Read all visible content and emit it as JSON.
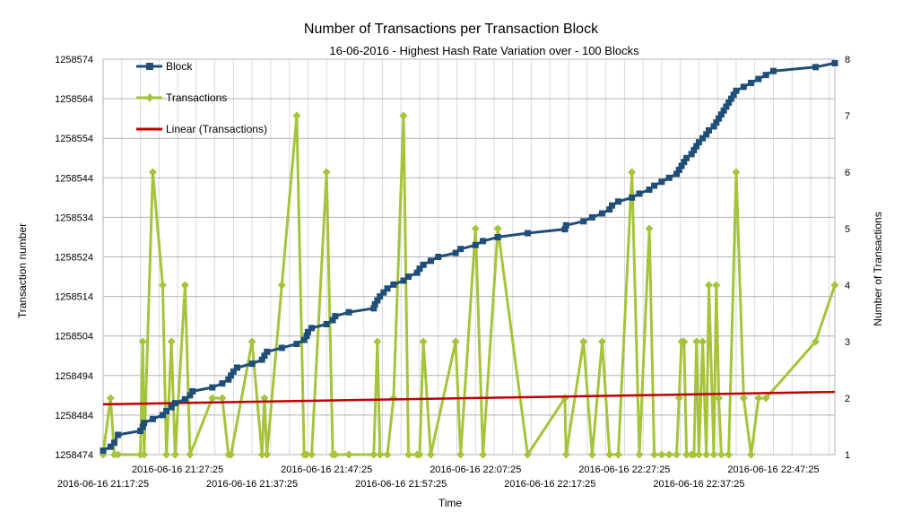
{
  "chart_data": {
    "type": "line",
    "title": "Number of Transactions per Transaction Block",
    "subtitle": "16-06-2016 - Highest Hash Rate Variation over - 100 Blocks",
    "xlabel": "Time",
    "ylabel": "Transaction number",
    "y2label": "Number of Transactions",
    "x_ticks_upper": [
      "2016-06-16 21:27:25",
      "2016-06-16 21:47:25",
      "2016-06-16 22:07:25",
      "2016-06-16 22:27:25",
      "2016-06-16 22:47:25"
    ],
    "x_ticks_lower": [
      "2016-06-16 21:17:25",
      "2016-06-16 21:37:25",
      "2016-06-16 21:57:25",
      "2016-06-16 22:17:25",
      "2016-06-16 22:37:25"
    ],
    "xlim": [
      "2016-06-16 21:17:25",
      "2016-06-16 22:55:40"
    ],
    "ylim": [
      1258474,
      1258574
    ],
    "y_ticks": [
      1258474,
      1258484,
      1258494,
      1258504,
      1258514,
      1258524,
      1258534,
      1258544,
      1258554,
      1258564,
      1258574
    ],
    "y2lim": [
      1,
      8
    ],
    "y2_ticks": [
      1,
      2,
      3,
      4,
      5,
      6,
      7,
      8
    ],
    "grid": true,
    "legend_position": "top-left",
    "series": [
      {
        "name": "Block",
        "axis": "left",
        "color": "#1f4e79",
        "marker": "square",
        "points": [
          [
            "2016-06-16 21:17:25",
            1258475
          ],
          [
            "2016-06-16 21:18:25",
            1258476
          ],
          [
            "2016-06-16 21:18:55",
            1258477
          ],
          [
            "2016-06-16 21:19:25",
            1258479
          ],
          [
            "2016-06-16 21:22:25",
            1258480
          ],
          [
            "2016-06-16 21:22:45",
            1258481
          ],
          [
            "2016-06-16 21:22:55",
            1258482
          ],
          [
            "2016-06-16 21:24:05",
            1258483
          ],
          [
            "2016-06-16 21:25:25",
            1258484
          ],
          [
            "2016-06-16 21:25:55",
            1258485
          ],
          [
            "2016-06-16 21:26:35",
            1258486
          ],
          [
            "2016-06-16 21:27:05",
            1258487
          ],
          [
            "2016-06-16 21:28:25",
            1258488
          ],
          [
            "2016-06-16 21:29:05",
            1258489
          ],
          [
            "2016-06-16 21:29:25",
            1258490
          ],
          [
            "2016-06-16 21:32:05",
            1258491
          ],
          [
            "2016-06-16 21:33:25",
            1258492
          ],
          [
            "2016-06-16 21:34:15",
            1258493
          ],
          [
            "2016-06-16 21:34:35",
            1258494
          ],
          [
            "2016-06-16 21:34:55",
            1258495
          ],
          [
            "2016-06-16 21:35:25",
            1258496
          ],
          [
            "2016-06-16 21:37:25",
            1258497
          ],
          [
            "2016-06-16 21:38:45",
            1258498
          ],
          [
            "2016-06-16 21:39:05",
            1258499
          ],
          [
            "2016-06-16 21:39:25",
            1258500
          ],
          [
            "2016-06-16 21:41:25",
            1258501
          ],
          [
            "2016-06-16 21:43:25",
            1258502
          ],
          [
            "2016-06-16 21:44:25",
            1258503
          ],
          [
            "2016-06-16 21:44:45",
            1258504
          ],
          [
            "2016-06-16 21:44:55",
            1258505
          ],
          [
            "2016-06-16 21:45:25",
            1258506
          ],
          [
            "2016-06-16 21:47:25",
            1258507
          ],
          [
            "2016-06-16 21:48:15",
            1258508
          ],
          [
            "2016-06-16 21:48:35",
            1258509
          ],
          [
            "2016-06-16 21:50:25",
            1258510
          ],
          [
            "2016-06-16 21:53:45",
            1258511
          ],
          [
            "2016-06-16 21:53:55",
            1258512
          ],
          [
            "2016-06-16 21:54:15",
            1258513
          ],
          [
            "2016-06-16 21:54:35",
            1258514
          ],
          [
            "2016-06-16 21:55:05",
            1258515
          ],
          [
            "2016-06-16 21:55:35",
            1258516
          ],
          [
            "2016-06-16 21:56:25",
            1258517
          ],
          [
            "2016-06-16 21:57:45",
            1258518
          ],
          [
            "2016-06-16 21:58:25",
            1258519
          ],
          [
            "2016-06-16 21:59:35",
            1258520
          ],
          [
            "2016-06-16 21:59:55",
            1258521
          ],
          [
            "2016-06-16 22:00:25",
            1258522
          ],
          [
            "2016-06-16 22:01:25",
            1258523
          ],
          [
            "2016-06-16 22:02:25",
            1258524
          ],
          [
            "2016-06-16 22:04:45",
            1258525
          ],
          [
            "2016-06-16 22:05:25",
            1258526
          ],
          [
            "2016-06-16 22:07:25",
            1258527
          ],
          [
            "2016-06-16 22:08:25",
            1258528
          ],
          [
            "2016-06-16 22:10:25",
            1258529
          ],
          [
            "2016-06-16 22:14:25",
            1258530
          ],
          [
            "2016-06-16 22:19:25",
            1258531
          ],
          [
            "2016-06-16 22:19:35",
            1258532
          ],
          [
            "2016-06-16 22:21:55",
            1258533
          ],
          [
            "2016-06-16 22:23:05",
            1258534
          ],
          [
            "2016-06-16 22:24:25",
            1258535
          ],
          [
            "2016-06-16 22:25:25",
            1258536
          ],
          [
            "2016-06-16 22:25:45",
            1258537
          ],
          [
            "2016-06-16 22:26:35",
            1258538
          ],
          [
            "2016-06-16 22:28:25",
            1258539
          ],
          [
            "2016-06-16 22:29:25",
            1258540
          ],
          [
            "2016-06-16 22:30:45",
            1258541
          ],
          [
            "2016-06-16 22:31:25",
            1258542
          ],
          [
            "2016-06-16 22:32:25",
            1258543
          ],
          [
            "2016-06-16 22:33:25",
            1258544
          ],
          [
            "2016-06-16 22:34:25",
            1258545
          ],
          [
            "2016-06-16 22:34:45",
            1258546
          ],
          [
            "2016-06-16 22:35:05",
            1258547
          ],
          [
            "2016-06-16 22:35:25",
            1258548
          ],
          [
            "2016-06-16 22:35:45",
            1258549
          ],
          [
            "2016-06-16 22:36:25",
            1258550
          ],
          [
            "2016-06-16 22:36:45",
            1258551
          ],
          [
            "2016-06-16 22:37:05",
            1258552
          ],
          [
            "2016-06-16 22:37:25",
            1258553
          ],
          [
            "2016-06-16 22:37:55",
            1258554
          ],
          [
            "2016-06-16 22:38:25",
            1258555
          ],
          [
            "2016-06-16 22:38:45",
            1258556
          ],
          [
            "2016-06-16 22:39:25",
            1258557
          ],
          [
            "2016-06-16 22:39:45",
            1258558
          ],
          [
            "2016-06-16 22:40:05",
            1258559
          ],
          [
            "2016-06-16 22:40:25",
            1258560
          ],
          [
            "2016-06-16 22:40:45",
            1258561
          ],
          [
            "2016-06-16 22:41:05",
            1258562
          ],
          [
            "2016-06-16 22:41:25",
            1258563
          ],
          [
            "2016-06-16 22:41:45",
            1258564
          ],
          [
            "2016-06-16 22:42:05",
            1258565
          ],
          [
            "2016-06-16 22:42:25",
            1258566
          ],
          [
            "2016-06-16 22:43:25",
            1258567
          ],
          [
            "2016-06-16 22:44:25",
            1258568
          ],
          [
            "2016-06-16 22:45:25",
            1258569
          ],
          [
            "2016-06-16 22:46:25",
            1258570
          ],
          [
            "2016-06-16 22:47:25",
            1258571
          ],
          [
            "2016-06-16 22:53:05",
            1258572
          ],
          [
            "2016-06-16 22:55:40",
            1258573
          ]
        ]
      },
      {
        "name": "Transactions",
        "axis": "right",
        "color": "#a5c43a",
        "marker": "diamond",
        "points": [
          [
            "2016-06-16 21:17:25",
            1
          ],
          [
            "2016-06-16 21:18:25",
            2
          ],
          [
            "2016-06-16 21:18:55",
            1
          ],
          [
            "2016-06-16 21:19:25",
            1
          ],
          [
            "2016-06-16 21:22:25",
            1
          ],
          [
            "2016-06-16 21:22:45",
            3
          ],
          [
            "2016-06-16 21:22:55",
            1
          ],
          [
            "2016-06-16 21:24:05",
            6
          ],
          [
            "2016-06-16 21:25:25",
            4
          ],
          [
            "2016-06-16 21:25:55",
            1
          ],
          [
            "2016-06-16 21:26:35",
            3
          ],
          [
            "2016-06-16 21:27:05",
            1
          ],
          [
            "2016-06-16 21:28:25",
            4
          ],
          [
            "2016-06-16 21:29:05",
            1
          ],
          [
            "2016-06-16 21:32:05",
            2
          ],
          [
            "2016-06-16 21:33:25",
            2
          ],
          [
            "2016-06-16 21:34:15",
            1
          ],
          [
            "2016-06-16 21:34:35",
            1
          ],
          [
            "2016-06-16 21:37:25",
            3
          ],
          [
            "2016-06-16 21:38:45",
            1
          ],
          [
            "2016-06-16 21:39:05",
            2
          ],
          [
            "2016-06-16 21:39:25",
            1
          ],
          [
            "2016-06-16 21:41:25",
            4
          ],
          [
            "2016-06-16 21:43:25",
            7
          ],
          [
            "2016-06-16 21:44:25",
            1
          ],
          [
            "2016-06-16 21:44:45",
            1
          ],
          [
            "2016-06-16 21:45:25",
            1
          ],
          [
            "2016-06-16 21:47:25",
            6
          ],
          [
            "2016-06-16 21:48:15",
            1
          ],
          [
            "2016-06-16 21:48:35",
            1
          ],
          [
            "2016-06-16 21:50:25",
            1
          ],
          [
            "2016-06-16 21:53:45",
            1
          ],
          [
            "2016-06-16 21:54:15",
            3
          ],
          [
            "2016-06-16 21:54:35",
            1
          ],
          [
            "2016-06-16 21:55:35",
            1
          ],
          [
            "2016-06-16 21:56:25",
            2
          ],
          [
            "2016-06-16 21:57:45",
            7
          ],
          [
            "2016-06-16 21:58:25",
            1
          ],
          [
            "2016-06-16 21:59:35",
            1
          ],
          [
            "2016-06-16 21:59:55",
            1
          ],
          [
            "2016-06-16 22:00:25",
            3
          ],
          [
            "2016-06-16 22:01:25",
            1
          ],
          [
            "2016-06-16 22:04:45",
            3
          ],
          [
            "2016-06-16 22:05:25",
            1
          ],
          [
            "2016-06-16 22:07:25",
            5
          ],
          [
            "2016-06-16 22:08:25",
            1
          ],
          [
            "2016-06-16 22:10:25",
            5
          ],
          [
            "2016-06-16 22:14:25",
            1
          ],
          [
            "2016-06-16 22:19:25",
            2
          ],
          [
            "2016-06-16 22:19:35",
            1
          ],
          [
            "2016-06-16 22:21:55",
            3
          ],
          [
            "2016-06-16 22:23:05",
            1
          ],
          [
            "2016-06-16 22:24:25",
            3
          ],
          [
            "2016-06-16 22:25:25",
            1
          ],
          [
            "2016-06-16 22:26:35",
            1
          ],
          [
            "2016-06-16 22:28:25",
            6
          ],
          [
            "2016-06-16 22:29:25",
            1
          ],
          [
            "2016-06-16 22:30:45",
            5
          ],
          [
            "2016-06-16 22:31:25",
            1
          ],
          [
            "2016-06-16 22:32:25",
            1
          ],
          [
            "2016-06-16 22:33:25",
            1
          ],
          [
            "2016-06-16 22:34:25",
            1
          ],
          [
            "2016-06-16 22:34:45",
            2
          ],
          [
            "2016-06-16 22:35:05",
            3
          ],
          [
            "2016-06-16 22:35:25",
            3
          ],
          [
            "2016-06-16 22:35:45",
            1
          ],
          [
            "2016-06-16 22:36:25",
            1
          ],
          [
            "2016-06-16 22:36:45",
            1
          ],
          [
            "2016-06-16 22:37:05",
            3
          ],
          [
            "2016-06-16 22:37:25",
            1
          ],
          [
            "2016-06-16 22:37:55",
            3
          ],
          [
            "2016-06-16 22:38:25",
            1
          ],
          [
            "2016-06-16 22:38:45",
            4
          ],
          [
            "2016-06-16 22:39:25",
            1
          ],
          [
            "2016-06-16 22:39:45",
            4
          ],
          [
            "2016-06-16 22:40:05",
            2
          ],
          [
            "2016-06-16 22:40:25",
            1
          ],
          [
            "2016-06-16 22:41:25",
            1
          ],
          [
            "2016-06-16 22:42:25",
            6
          ],
          [
            "2016-06-16 22:43:25",
            2
          ],
          [
            "2016-06-16 22:44:25",
            1
          ],
          [
            "2016-06-16 22:45:25",
            2
          ],
          [
            "2016-06-16 22:46:25",
            2
          ],
          [
            "2016-06-16 22:53:05",
            3
          ],
          [
            "2016-06-16 22:55:40",
            4
          ]
        ]
      },
      {
        "name": "Linear (Transactions)",
        "axis": "right",
        "color": "#c00000",
        "marker": "none",
        "points": [
          [
            "2016-06-16 21:17:25",
            1.89
          ],
          [
            "2016-06-16 22:55:40",
            2.11
          ]
        ]
      }
    ]
  }
}
